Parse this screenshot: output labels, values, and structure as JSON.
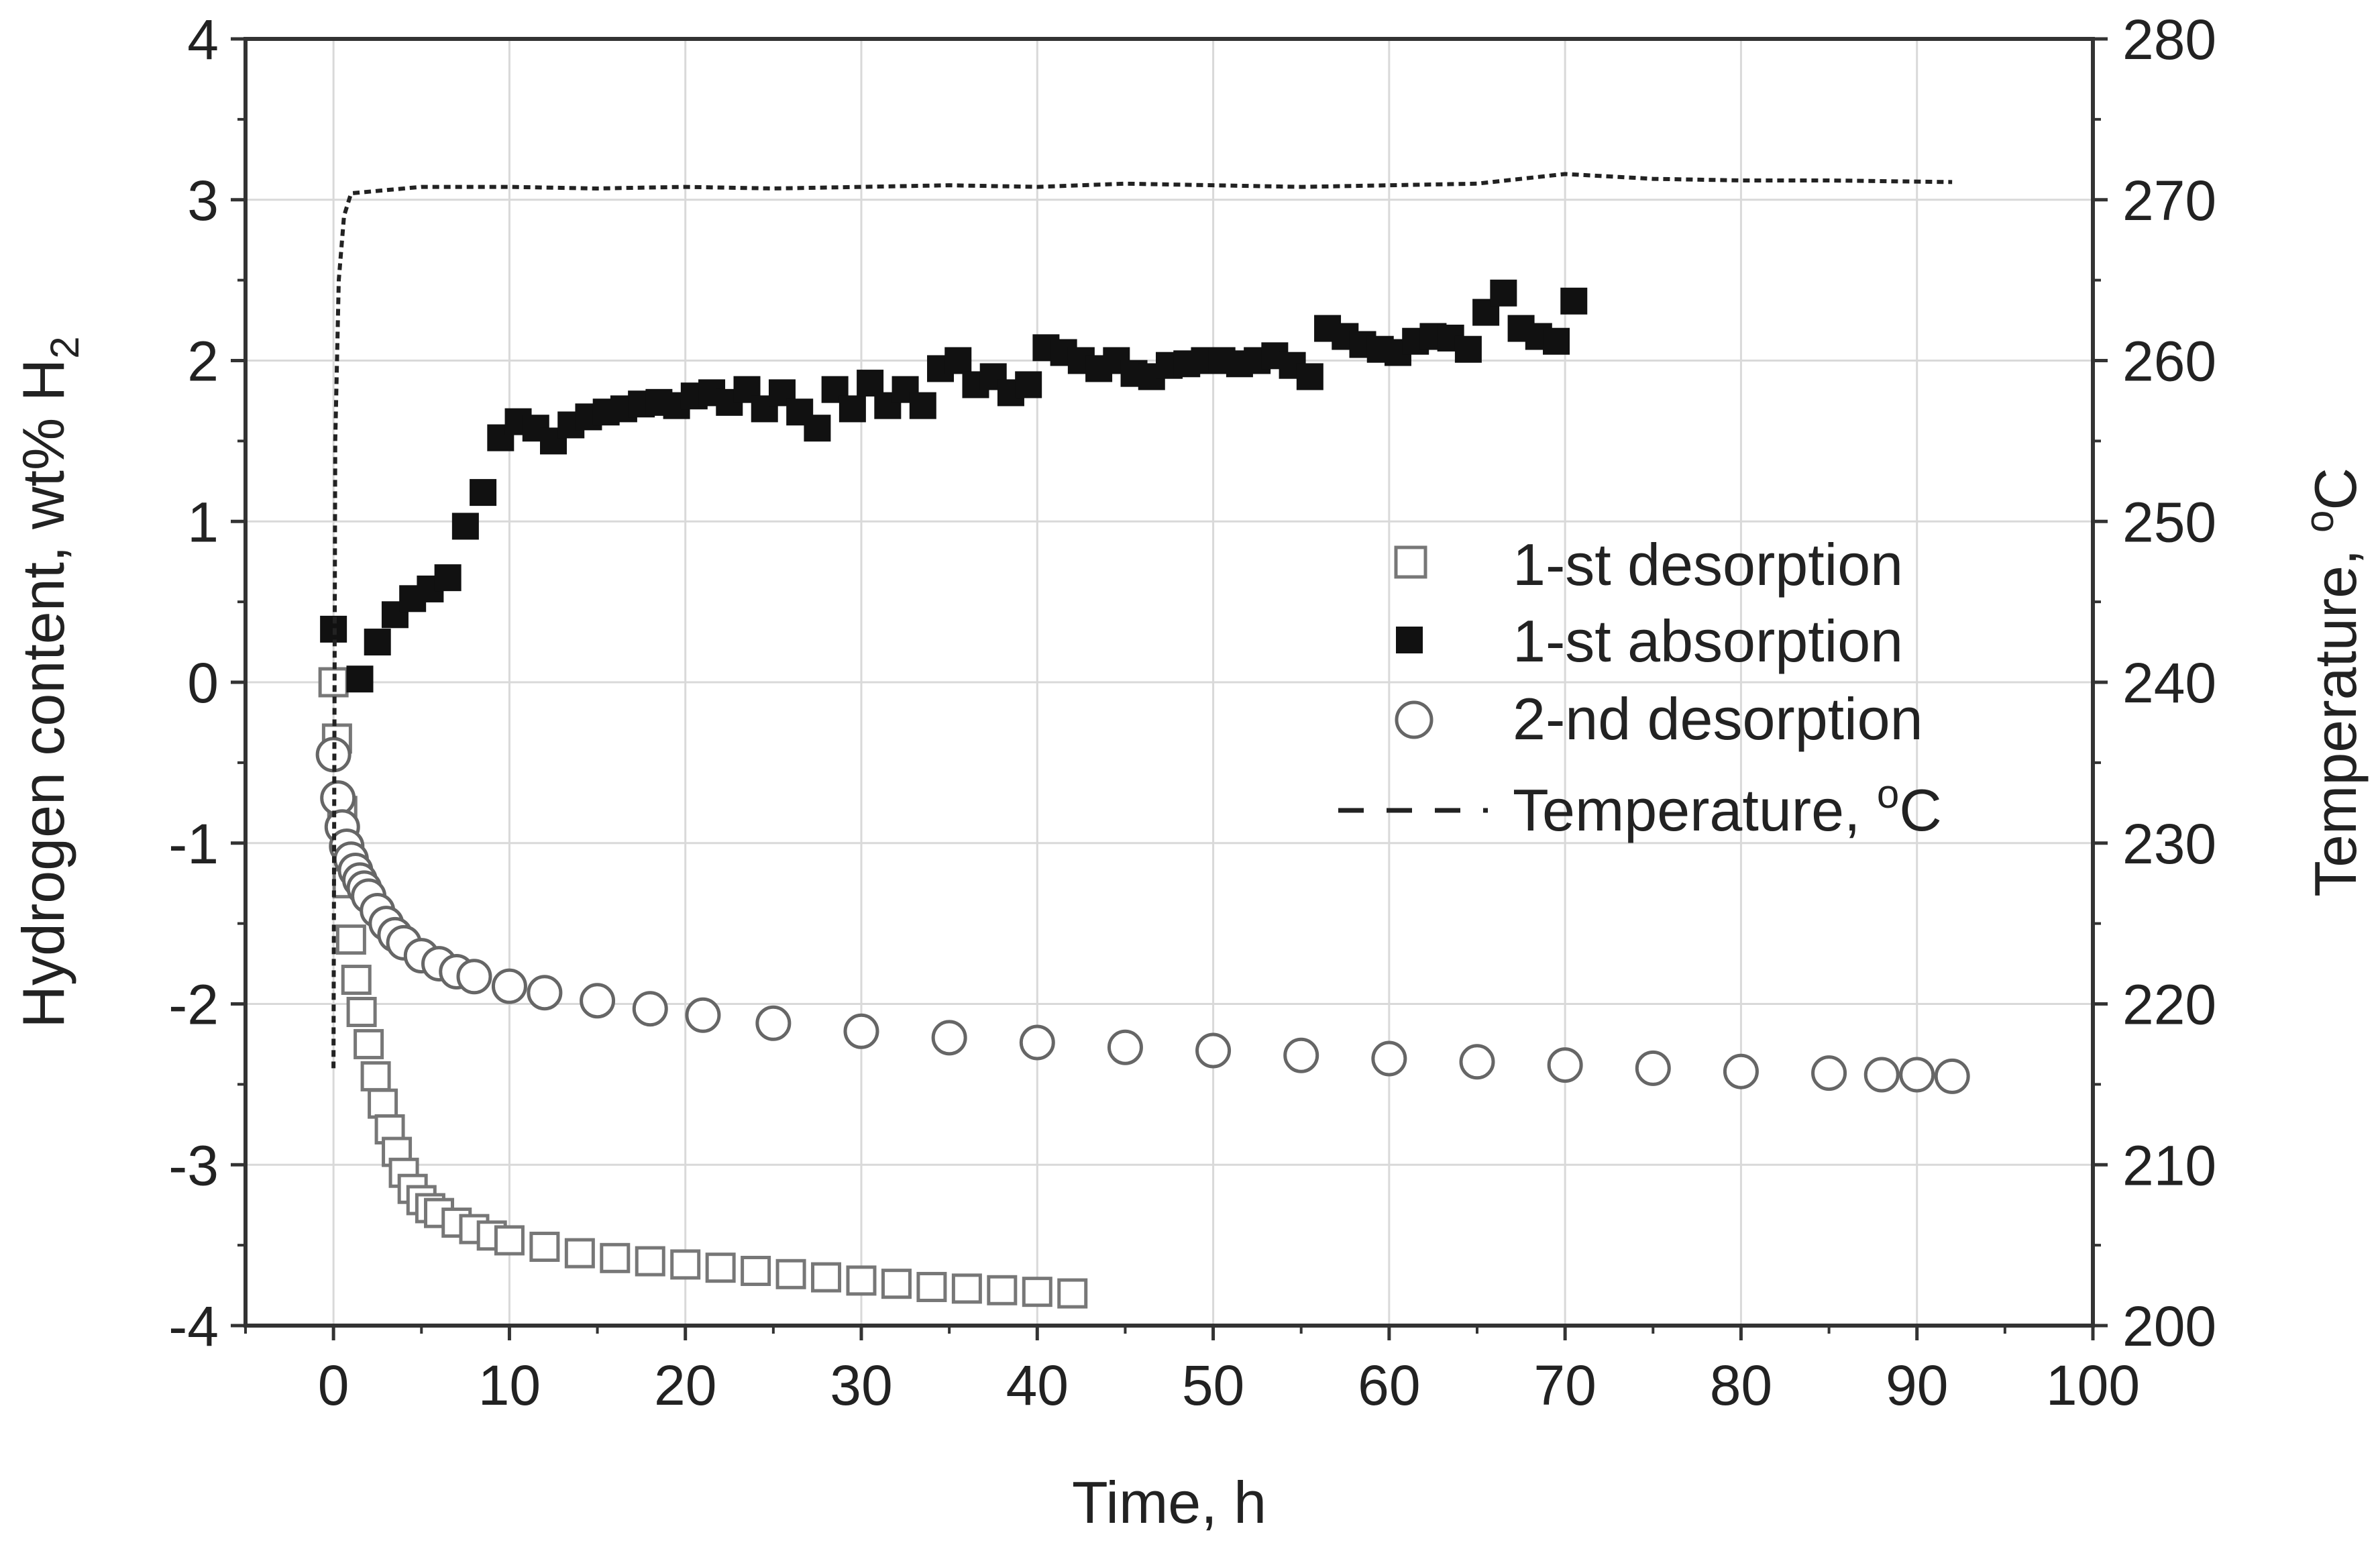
{
  "chart_data": {
    "type": "scatter",
    "xlabel": "Time, h",
    "ylabel_text": "Hydrogen content, wt% H",
    "ylabel_sub": "2",
    "y2label_text": "Temperature, ",
    "y2label_sup": "o",
    "y2label_unit": "C",
    "xlim": [
      -5,
      100
    ],
    "ylim": [
      -4,
      4
    ],
    "y2lim": [
      200,
      280
    ],
    "x_ticks": [
      "0",
      "10",
      "20",
      "30",
      "40",
      "50",
      "60",
      "70",
      "80",
      "90",
      "100"
    ],
    "y_ticks": [
      "-4",
      "-3",
      "-2",
      "-1",
      "0",
      "1",
      "2",
      "3",
      "4"
    ],
    "y2_ticks": [
      "200",
      "210",
      "220",
      "230",
      "240",
      "250",
      "260",
      "270",
      "280"
    ],
    "grid": true,
    "legend_position": "right-middle",
    "series": [
      {
        "name": "1-st desorption",
        "marker": "open-square",
        "color": "#777777",
        "x": [
          0,
          0.2,
          0.5,
          0.8,
          1.0,
          1.3,
          1.6,
          2.0,
          2.4,
          2.8,
          3.2,
          3.6,
          4.0,
          4.5,
          5.0,
          5.5,
          6,
          7,
          8,
          9,
          10,
          12,
          14,
          16,
          18,
          20,
          22,
          24,
          26,
          28,
          30,
          32,
          34,
          36,
          38,
          40,
          42
        ],
        "y": [
          0.0,
          -0.35,
          -0.8,
          -1.25,
          -1.6,
          -1.85,
          -2.05,
          -2.25,
          -2.45,
          -2.62,
          -2.78,
          -2.92,
          -3.05,
          -3.15,
          -3.22,
          -3.27,
          -3.3,
          -3.36,
          -3.4,
          -3.44,
          -3.47,
          -3.51,
          -3.55,
          -3.58,
          -3.6,
          -3.62,
          -3.64,
          -3.66,
          -3.68,
          -3.7,
          -3.72,
          -3.74,
          -3.76,
          -3.77,
          -3.78,
          -3.79,
          -3.8
        ]
      },
      {
        "name": "1-st absorption",
        "marker": "filled-square",
        "color": "#111111",
        "x": [
          0,
          1.5,
          2.5,
          3.5,
          4.5,
          5.5,
          6.5,
          7.5,
          8.5,
          9.5,
          10.5,
          11.5,
          12.5,
          13.5,
          14.5,
          15.5,
          16.5,
          17.5,
          18.5,
          19.5,
          20.5,
          21.5,
          22.5,
          23.5,
          24.5,
          25.5,
          26.5,
          27.5,
          28.5,
          29.5,
          30.5,
          31.5,
          32.5,
          33.5,
          34.5,
          35.5,
          36.5,
          37.5,
          38.5,
          39.5,
          40.5,
          41.5,
          42.5,
          43.5,
          44.5,
          45.5,
          46.5,
          47.5,
          48.5,
          49.5,
          50.5,
          51.5,
          52.5,
          53.5,
          54.5,
          55.5,
          56.5,
          57.5,
          58.5,
          59.5,
          60.5,
          61.5,
          62.5,
          63.5,
          64.5,
          65.5,
          66.5,
          67.5,
          68.5,
          69.5,
          70.5
        ],
        "y": [
          0.33,
          0.02,
          0.25,
          0.42,
          0.52,
          0.58,
          0.65,
          0.97,
          1.18,
          1.52,
          1.62,
          1.58,
          1.5,
          1.6,
          1.65,
          1.68,
          1.7,
          1.73,
          1.74,
          1.72,
          1.78,
          1.8,
          1.74,
          1.82,
          1.7,
          1.8,
          1.68,
          1.58,
          1.82,
          1.7,
          1.86,
          1.72,
          1.82,
          1.72,
          1.95,
          2.0,
          1.85,
          1.9,
          1.8,
          1.85,
          2.08,
          2.05,
          2.0,
          1.95,
          2.0,
          1.92,
          1.9,
          1.97,
          1.98,
          2.0,
          2.0,
          1.98,
          2.0,
          2.03,
          1.97,
          1.9,
          2.2,
          2.15,
          2.1,
          2.07,
          2.05,
          2.12,
          2.15,
          2.14,
          2.07,
          2.3,
          2.42,
          2.2,
          2.15,
          2.12,
          2.37
        ]
      },
      {
        "name": "2-nd desorption",
        "marker": "open-circle",
        "color": "#666666",
        "x": [
          0,
          0.25,
          0.5,
          0.75,
          1.0,
          1.25,
          1.5,
          1.75,
          2.0,
          2.5,
          3.0,
          3.5,
          4.0,
          5.0,
          6.0,
          7.0,
          8.0,
          10,
          12,
          15,
          18,
          21,
          25,
          30,
          35,
          40,
          45,
          50,
          55,
          60,
          65,
          70,
          75,
          80,
          85,
          88,
          90,
          92
        ],
        "y": [
          -0.45,
          -0.72,
          -0.9,
          -1.02,
          -1.1,
          -1.17,
          -1.23,
          -1.28,
          -1.33,
          -1.42,
          -1.5,
          -1.57,
          -1.62,
          -1.7,
          -1.75,
          -1.8,
          -1.83,
          -1.89,
          -1.93,
          -1.98,
          -2.03,
          -2.07,
          -2.12,
          -2.17,
          -2.21,
          -2.24,
          -2.27,
          -2.29,
          -2.32,
          -2.34,
          -2.36,
          -2.38,
          -2.4,
          -2.42,
          -2.43,
          -2.44,
          -2.44,
          -2.45
        ]
      },
      {
        "name": "Temperature, °C",
        "axis": "right",
        "marker": "dashed-line",
        "color": "#222222",
        "x": [
          0,
          0.1,
          0.3,
          0.6,
          1,
          5,
          10,
          15,
          20,
          25,
          30,
          35,
          40,
          45,
          50,
          55,
          60,
          65,
          70,
          75,
          80,
          85,
          92
        ],
        "y": [
          216,
          255,
          265,
          269,
          270.4,
          270.8,
          270.8,
          270.7,
          270.8,
          270.7,
          270.8,
          270.9,
          270.8,
          271.0,
          270.9,
          270.8,
          270.9,
          271.0,
          271.6,
          271.3,
          271.2,
          271.2,
          271.1
        ]
      }
    ],
    "legend": {
      "entries": [
        "1-st desorption",
        "1-st absorption",
        "2-nd desorption"
      ],
      "temp_text": "Temperature, ",
      "temp_sup": "o",
      "temp_unit": "C"
    }
  }
}
